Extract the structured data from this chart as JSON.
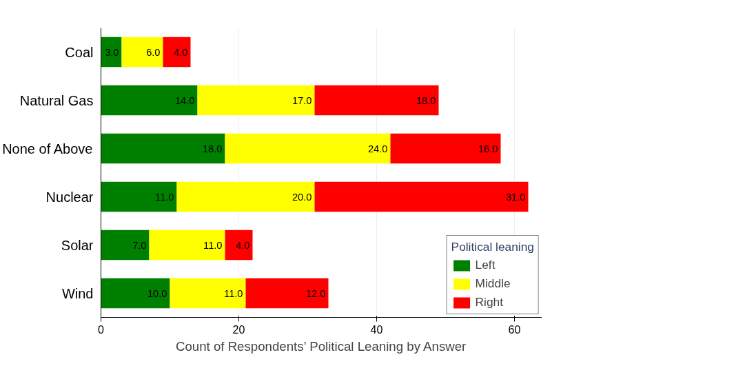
{
  "chart_data": {
    "type": "bar",
    "orientation": "horizontal",
    "stacked": true,
    "xlabel": "Count of Respondents’ Political Leaning by Answer",
    "categories": [
      "Coal",
      "Natural Gas",
      "None of Above",
      "Nuclear",
      "Solar",
      "Wind"
    ],
    "series": [
      {
        "name": "Left",
        "color": "#008000",
        "values": [
          3,
          14,
          18,
          11,
          7,
          10
        ],
        "value_labels": [
          "3.0",
          "14.0",
          "18.0",
          "11.0",
          "7.0",
          "10.0"
        ]
      },
      {
        "name": "Middle",
        "color": "#ffff00",
        "values": [
          6,
          17,
          24,
          20,
          11,
          11
        ],
        "value_labels": [
          "6.0",
          "17.0",
          "24.0",
          "20.0",
          "11.0",
          "11.0"
        ]
      },
      {
        "name": "Right",
        "color": "#ff0000",
        "values": [
          4,
          18,
          16,
          31,
          4,
          12
        ],
        "value_labels": [
          "4.0",
          "18.0",
          "16.0",
          "31.0",
          "4.0",
          "12.0"
        ]
      }
    ],
    "legend_title": "Political leaning",
    "legend": "bottom right",
    "xlim": [
      0,
      64
    ],
    "xticks": [
      0,
      20,
      40,
      60
    ],
    "grid": "x"
  }
}
